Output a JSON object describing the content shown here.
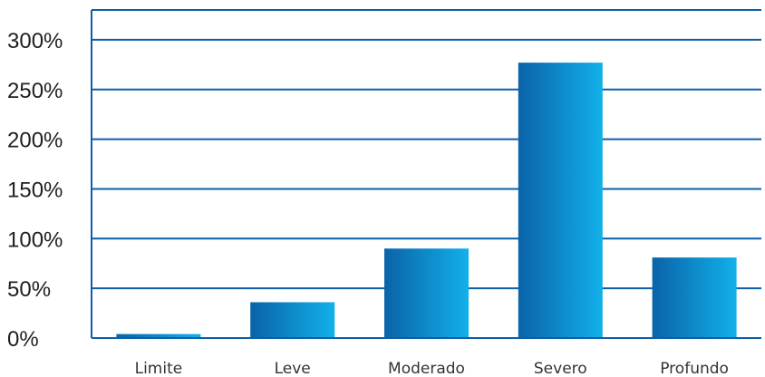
{
  "chart_data": {
    "type": "bar",
    "title": "",
    "xlabel": "",
    "ylabel": "",
    "categories": [
      "Limite",
      "Leve",
      "Moderado",
      "Severo",
      "Profundo"
    ],
    "values": [
      4,
      36,
      90,
      277,
      81
    ],
    "ylim": [
      0,
      330
    ],
    "yticks": [
      {
        "value": 0,
        "label": "0%"
      },
      {
        "value": 50,
        "label": "50%"
      },
      {
        "value": 100,
        "label": "100%"
      },
      {
        "value": 150,
        "label": "150%"
      },
      {
        "value": 200,
        "label": "200%"
      },
      {
        "value": 250,
        "label": "250%"
      },
      {
        "value": 300,
        "label": "300%"
      }
    ],
    "grid": true,
    "legend": "none",
    "colors": {
      "axis": "#0b5ea8",
      "grid": "#0b5ea8",
      "bar_dark": "#0a63a8",
      "bar_light": "#12b0ea"
    }
  }
}
